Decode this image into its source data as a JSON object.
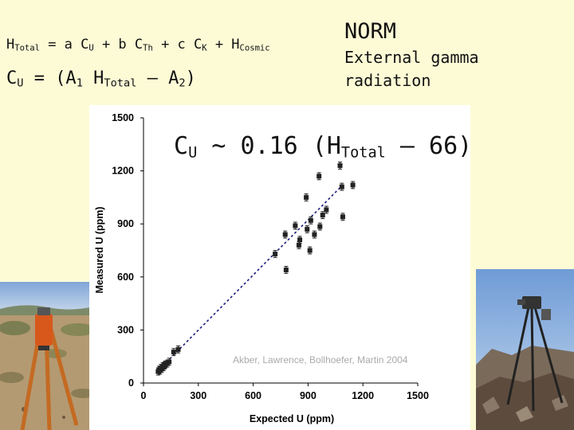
{
  "equations": {
    "htotal": {
      "lhs": "H",
      "lhs_sub": "Total",
      "t1": " = a C",
      "t1_sub": "U",
      "t2": " + b C",
      "t2_sub": "Th",
      "t3": " + c C",
      "t3_sub": "K",
      "t4": " + H",
      "t4_sub": "Cosmic"
    },
    "cu": {
      "c": "C",
      "c_sub": "U",
      "mid": " = (A",
      "a1_sub": "1",
      "h": " H",
      "h_sub": "Total",
      "minus": " – A",
      "a2_sub": "2",
      "close": ")"
    }
  },
  "header": {
    "norm": "NORM",
    "external": "External gamma radiation"
  },
  "fit_equation": {
    "c": "C",
    "c_sub": "U",
    "rest": " ~ 0.16 (H",
    "h_sub": "Total",
    "tail": " – 66)"
  },
  "citation": "Akber, Lawrence, Bollhoefer, Martin 2004",
  "colors": {
    "background": "#fdfbd6",
    "marker": "#222222",
    "fit_line": "#1a1a7a"
  },
  "chart_data": {
    "type": "scatter",
    "xlabel": "Expected U (ppm)",
    "ylabel": "Measured U (ppm)",
    "xlim": [
      0,
      1500
    ],
    "ylim": [
      0,
      1500
    ],
    "x_ticks": [
      0,
      300,
      600,
      900,
      1200,
      1500
    ],
    "y_ticks": [
      0,
      300,
      600,
      900,
      1200,
      1500
    ],
    "grid": false,
    "error_bars": true,
    "series": [
      {
        "points": [
          {
            "x": 80,
            "y": 65
          },
          {
            "x": 85,
            "y": 75
          },
          {
            "x": 90,
            "y": 70
          },
          {
            "x": 95,
            "y": 85
          },
          {
            "x": 100,
            "y": 80
          },
          {
            "x": 105,
            "y": 95
          },
          {
            "x": 110,
            "y": 90
          },
          {
            "x": 115,
            "y": 100
          },
          {
            "x": 120,
            "y": 105
          },
          {
            "x": 130,
            "y": 110
          },
          {
            "x": 140,
            "y": 120
          },
          {
            "x": 165,
            "y": 175
          },
          {
            "x": 190,
            "y": 190
          },
          {
            "x": 720,
            "y": 730
          },
          {
            "x": 775,
            "y": 840
          },
          {
            "x": 780,
            "y": 640
          },
          {
            "x": 830,
            "y": 890
          },
          {
            "x": 850,
            "y": 780
          },
          {
            "x": 855,
            "y": 810
          },
          {
            "x": 890,
            "y": 1050
          },
          {
            "x": 895,
            "y": 870
          },
          {
            "x": 910,
            "y": 750
          },
          {
            "x": 915,
            "y": 920
          },
          {
            "x": 935,
            "y": 840
          },
          {
            "x": 960,
            "y": 1170
          },
          {
            "x": 965,
            "y": 885
          },
          {
            "x": 980,
            "y": 950
          },
          {
            "x": 1000,
            "y": 980
          },
          {
            "x": 1085,
            "y": 1110
          },
          {
            "x": 1090,
            "y": 940
          },
          {
            "x": 1145,
            "y": 1120
          },
          {
            "x": 1075,
            "y": 1230
          }
        ],
        "error": 20
      }
    ],
    "fit_line": {
      "equation": "y = x",
      "points": [
        {
          "x": 70,
          "y": 60
        },
        {
          "x": 1080,
          "y": 1110
        }
      ]
    }
  }
}
